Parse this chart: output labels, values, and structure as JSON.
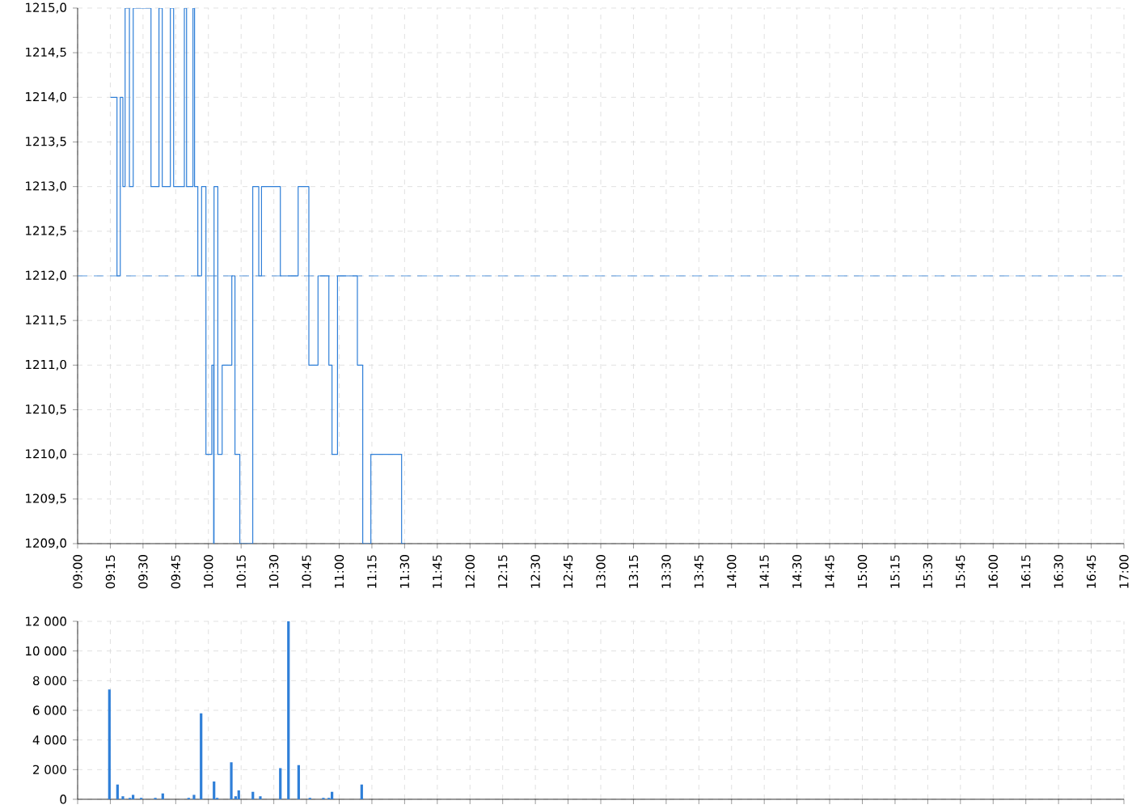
{
  "chart_data": [
    {
      "type": "step",
      "xlim": [
        9,
        17
      ],
      "ylim": [
        1209,
        1215
      ],
      "grid": true,
      "xticks": [
        {
          "value": 9.0,
          "label": "09:00"
        },
        {
          "value": 9.25,
          "label": "09:15"
        },
        {
          "value": 9.5,
          "label": "09:30"
        },
        {
          "value": 9.75,
          "label": "09:45"
        },
        {
          "value": 10.0,
          "label": "10:00"
        },
        {
          "value": 10.25,
          "label": "10:15"
        },
        {
          "value": 10.5,
          "label": "10:30"
        },
        {
          "value": 10.75,
          "label": "10:45"
        },
        {
          "value": 11.0,
          "label": "11:00"
        },
        {
          "value": 11.25,
          "label": "11:15"
        },
        {
          "value": 11.5,
          "label": "11:30"
        },
        {
          "value": 11.75,
          "label": "11:45"
        },
        {
          "value": 12.0,
          "label": "12:00"
        },
        {
          "value": 12.25,
          "label": "12:15"
        },
        {
          "value": 12.5,
          "label": "12:30"
        },
        {
          "value": 12.75,
          "label": "12:45"
        },
        {
          "value": 13.0,
          "label": "13:00"
        },
        {
          "value": 13.25,
          "label": "13:15"
        },
        {
          "value": 13.5,
          "label": "13:30"
        },
        {
          "value": 13.75,
          "label": "13:45"
        },
        {
          "value": 14.0,
          "label": "14:00"
        },
        {
          "value": 14.25,
          "label": "14:15"
        },
        {
          "value": 14.5,
          "label": "14:30"
        },
        {
          "value": 14.75,
          "label": "14:45"
        },
        {
          "value": 15.0,
          "label": "15:00"
        },
        {
          "value": 15.25,
          "label": "15:15"
        },
        {
          "value": 15.5,
          "label": "15:30"
        },
        {
          "value": 15.75,
          "label": "15:45"
        },
        {
          "value": 16.0,
          "label": "16:00"
        },
        {
          "value": 16.25,
          "label": "16:15"
        },
        {
          "value": 16.5,
          "label": "16:30"
        },
        {
          "value": 16.75,
          "label": "16:45"
        },
        {
          "value": 17.0,
          "label": "17:00"
        }
      ],
      "yticks": [
        {
          "value": 1209.0,
          "label": "1209,0"
        },
        {
          "value": 1209.5,
          "label": "1209,5"
        },
        {
          "value": 1210.0,
          "label": "1210,0"
        },
        {
          "value": 1210.5,
          "label": "1210,5"
        },
        {
          "value": 1211.0,
          "label": "1211,0"
        },
        {
          "value": 1211.5,
          "label": "1211,5"
        },
        {
          "value": 1212.0,
          "label": "1212,0"
        },
        {
          "value": 1212.5,
          "label": "1212,5"
        },
        {
          "value": 1213.0,
          "label": "1213,0"
        },
        {
          "value": 1213.5,
          "label": "1213,5"
        },
        {
          "value": 1214.0,
          "label": "1214,0"
        },
        {
          "value": 1214.5,
          "label": "1214,5"
        },
        {
          "value": 1215.0,
          "label": "1215,0"
        }
      ],
      "ref_lines": [
        {
          "axis": "y",
          "value": 1212,
          "color": "#2f7fd8",
          "line_style": "dashed"
        }
      ],
      "series": [
        {
          "color": "#2f7fd8",
          "x": [
            9.251,
            9.301,
            9.326,
            9.346,
            9.363,
            9.396,
            9.425,
            9.561,
            9.622,
            9.647,
            9.709,
            9.734,
            9.816,
            9.833,
            9.882,
            9.894,
            9.919,
            9.948,
            9.981,
            10.026,
            10.04,
            10.043,
            10.072,
            10.105,
            10.179,
            10.203,
            10.24,
            10.339,
            10.385,
            10.406,
            10.55,
            10.686,
            10.768,
            10.838,
            10.921,
            10.945,
            10.987,
            11.139,
            11.18,
            11.242,
            11.477,
            11.506
          ],
          "values": [
            1214,
            1212,
            1214,
            1213,
            1215,
            1213,
            1215,
            1213,
            1215,
            1213,
            1215,
            1213,
            1215,
            1213,
            1215,
            1213,
            1212,
            1213,
            1210,
            1211,
            1209,
            1213,
            1210,
            1211,
            1212,
            1210,
            1209,
            1213,
            1212,
            1213,
            1212,
            1213,
            1211,
            1212,
            1211,
            1210,
            1212,
            1211,
            1209,
            1210,
            1209,
            1209
          ]
        }
      ]
    },
    {
      "type": "bar",
      "xlim": [
        9,
        17
      ],
      "ylim": [
        0,
        12000
      ],
      "grid": true,
      "tick_labels": "y",
      "xticks": [
        {
          "value": 9.0,
          "label": null
        },
        {
          "value": 9.25,
          "label": null
        },
        {
          "value": 9.5,
          "label": null
        },
        {
          "value": 9.75,
          "label": null
        },
        {
          "value": 10.0,
          "label": null
        },
        {
          "value": 10.25,
          "label": null
        },
        {
          "value": 10.5,
          "label": null
        },
        {
          "value": 10.75,
          "label": null
        },
        {
          "value": 11.0,
          "label": null
        },
        {
          "value": 11.25,
          "label": null
        },
        {
          "value": 11.5,
          "label": null
        },
        {
          "value": 11.75,
          "label": null
        },
        {
          "value": 12.0,
          "label": null
        },
        {
          "value": 12.25,
          "label": null
        },
        {
          "value": 12.5,
          "label": null
        },
        {
          "value": 12.75,
          "label": null
        },
        {
          "value": 13.0,
          "label": null
        },
        {
          "value": 13.25,
          "label": null
        },
        {
          "value": 13.5,
          "label": null
        },
        {
          "value": 13.75,
          "label": null
        },
        {
          "value": 14.0,
          "label": null
        },
        {
          "value": 14.25,
          "label": null
        },
        {
          "value": 14.5,
          "label": null
        },
        {
          "value": 14.75,
          "label": null
        },
        {
          "value": 15.0,
          "label": null
        },
        {
          "value": 15.25,
          "label": null
        },
        {
          "value": 15.5,
          "label": null
        },
        {
          "value": 15.75,
          "label": null
        },
        {
          "value": 16.0,
          "label": null
        },
        {
          "value": 16.25,
          "label": null
        },
        {
          "value": 16.5,
          "label": null
        },
        {
          "value": 16.75,
          "label": null
        },
        {
          "value": 17.0,
          "label": null
        }
      ],
      "yticks": [
        0,
        {
          "value": 2000,
          "label": "2 000"
        },
        {
          "value": 4000,
          "label": "4 000"
        },
        {
          "value": 6000,
          "label": "6 000"
        },
        {
          "value": 8000,
          "label": "8 000"
        },
        {
          "value": 10000,
          "label": "10 000"
        },
        {
          "value": 12000,
          "label": "12 000"
        }
      ],
      "series": [
        {
          "color": "#2f7fd8",
          "x": [
            9.243,
            9.305,
            9.346,
            9.4,
            9.424,
            9.486,
            9.594,
            9.651,
            9.849,
            9.89,
            9.944,
            10.043,
            10.067,
            10.175,
            10.208,
            10.232,
            10.34,
            10.397,
            10.55,
            10.612,
            10.69,
            10.776,
            10.879,
            10.921,
            10.945,
            11.172
          ],
          "values": [
            7400,
            1000,
            200,
            100,
            300,
            100,
            100,
            400,
            100,
            300,
            5800,
            1200,
            100,
            2500,
            200,
            600,
            500,
            200,
            2100,
            12000,
            2300,
            100,
            100,
            100,
            500,
            1000
          ]
        }
      ]
    }
  ]
}
